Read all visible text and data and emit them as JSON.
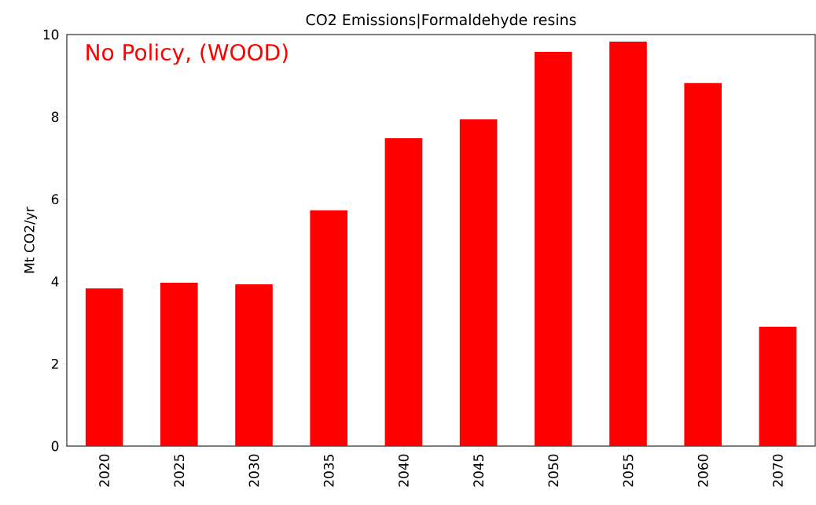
{
  "chart_data": {
    "type": "bar",
    "title": "CO2 Emissions|Formaldehyde resins",
    "ylabel": "Mt CO2/yr",
    "categories": [
      "2020",
      "2025",
      "2030",
      "2035",
      "2040",
      "2045",
      "2050",
      "2055",
      "2060",
      "2070"
    ],
    "values": [
      3.83,
      3.97,
      3.93,
      5.73,
      7.48,
      7.94,
      9.58,
      9.83,
      8.82,
      2.9
    ],
    "color": "#ff0000",
    "ylim": [
      0,
      10
    ],
    "yticks": [
      0,
      2,
      4,
      6,
      8,
      10
    ],
    "grid": false,
    "annotations": [
      "No Policy, (WOOD)"
    ]
  }
}
